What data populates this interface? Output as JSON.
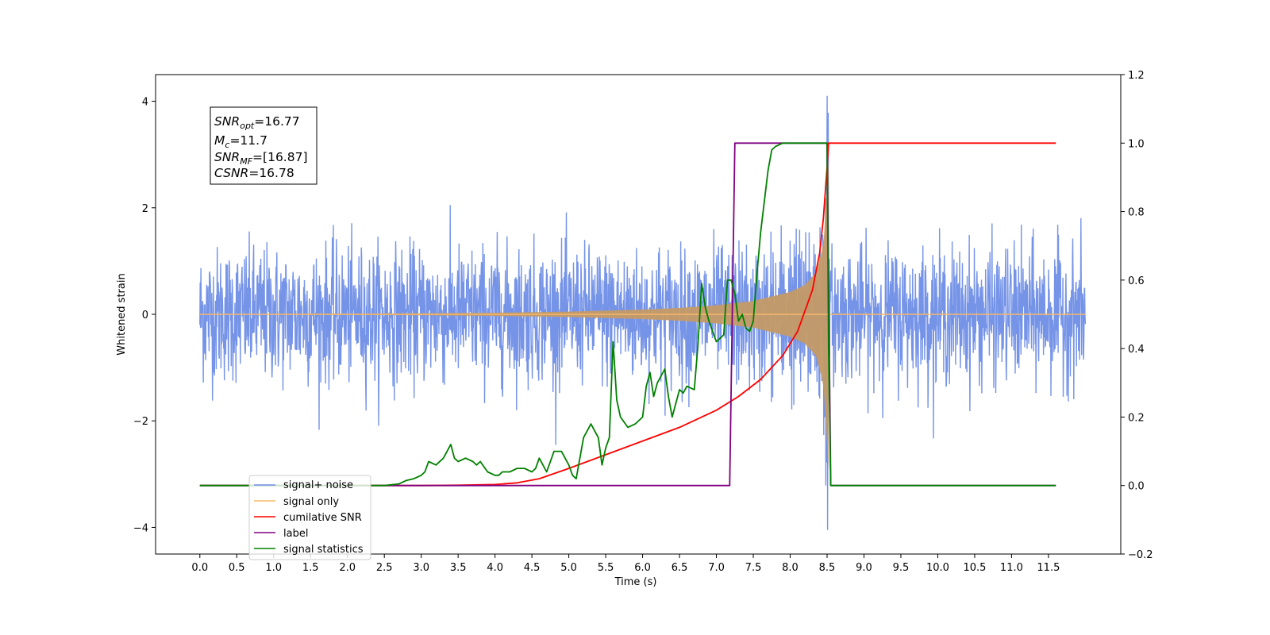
{
  "chart_data": {
    "type": "line",
    "xlabel": "Time (s)",
    "ylabel_left": "Whitened strain",
    "ylabel_right": "",
    "xlim": [
      -0.6,
      12.48
    ],
    "ylim_left": [
      -4.5,
      4.5
    ],
    "ylim_right": [
      -0.2,
      1.2
    ],
    "x_ticks": [
      "0.0",
      "0.5",
      "1.0",
      "1.5",
      "2.0",
      "2.5",
      "3.0",
      "3.5",
      "4.0",
      "4.5",
      "5.0",
      "5.5",
      "6.0",
      "6.5",
      "7.0",
      "7.5",
      "8.0",
      "8.5",
      "9.0",
      "9.5",
      "10.0",
      "10.5",
      "11.0",
      "11.5"
    ],
    "x_tick_values": [
      0,
      0.5,
      1,
      1.5,
      2,
      2.5,
      3,
      3.5,
      4,
      4.5,
      5,
      5.5,
      6,
      6.5,
      7,
      7.5,
      8,
      8.5,
      9,
      9.5,
      10,
      10.5,
      11,
      11.5
    ],
    "y_ticks_left": [
      "−4",
      "−2",
      "0",
      "2",
      "4"
    ],
    "y_tick_values_left": [
      -4,
      -2,
      0,
      2,
      4
    ],
    "y_ticks_right": [
      "−0.2",
      "0.0",
      "0.2",
      "0.4",
      "0.6",
      "0.8",
      "1.0",
      "1.2"
    ],
    "y_tick_values_right": [
      -0.2,
      0,
      0.2,
      0.4,
      0.6,
      0.8,
      1.0,
      1.2
    ],
    "grid": false,
    "legend_placement": "lower-left",
    "annotation": {
      "lines": [
        {
          "base": "SNR",
          "sub": "opt",
          "rest": "=16.77"
        },
        {
          "base": "M",
          "sub": "c",
          "rest": "=11.7"
        },
        {
          "base": "SNR",
          "sub": "MF",
          "rest": "=[16.87]"
        },
        {
          "base": "CSNR",
          "sub": "",
          "rest": "=16.78"
        }
      ]
    },
    "series": [
      {
        "name": "signal+ noise",
        "axis": "left",
        "color": "#6f8ee6",
        "noise_level": 1.0,
        "t_range": [
          0,
          12.0
        ],
        "peak_value": 4.1,
        "min_value": -4.05
      },
      {
        "name": "signal only",
        "axis": "left",
        "color": "#f5b869",
        "envelope_x": [
          0,
          1,
          2,
          3,
          4,
          5,
          5.5,
          6,
          6.5,
          7,
          7.5,
          8,
          8.2,
          8.35,
          8.45,
          8.5,
          8.52
        ],
        "envelope_y": [
          0.005,
          0.008,
          0.012,
          0.018,
          0.03,
          0.05,
          0.07,
          0.09,
          0.12,
          0.17,
          0.25,
          0.42,
          0.55,
          0.78,
          1.3,
          2.4,
          2.9
        ]
      },
      {
        "name": "cumilative SNR",
        "axis": "right",
        "color": "#ff0000",
        "x": [
          0,
          2,
          3,
          3.5,
          4,
          4.3,
          4.6,
          5,
          5.5,
          6,
          6.5,
          7,
          7.3,
          7.6,
          7.9,
          8.1,
          8.3,
          8.4,
          8.45,
          8.5,
          8.52,
          9,
          10,
          11,
          11.6
        ],
        "y": [
          0,
          0,
          0,
          0.001,
          0.003,
          0.008,
          0.02,
          0.05,
          0.09,
          0.13,
          0.17,
          0.22,
          0.26,
          0.31,
          0.38,
          0.45,
          0.57,
          0.68,
          0.78,
          0.93,
          1.0,
          1.0,
          1.0,
          1.0,
          1.0
        ]
      },
      {
        "name": "label",
        "axis": "right",
        "color": "#800080",
        "x": [
          0,
          7.18,
          7.25,
          8.5,
          8.55,
          11.6
        ],
        "y": [
          0,
          0,
          1,
          1,
          0,
          0
        ]
      },
      {
        "name": "signal statistics",
        "axis": "right",
        "color": "#008000",
        "x": [
          0,
          2.2,
          2.5,
          2.7,
          2.8,
          2.9,
          3.0,
          3.05,
          3.1,
          3.2,
          3.3,
          3.4,
          3.45,
          3.5,
          3.6,
          3.7,
          3.75,
          3.8,
          3.9,
          4.0,
          4.05,
          4.1,
          4.2,
          4.3,
          4.4,
          4.5,
          4.55,
          4.6,
          4.7,
          4.8,
          4.9,
          5.0,
          5.05,
          5.1,
          5.2,
          5.3,
          5.35,
          5.4,
          5.45,
          5.5,
          5.55,
          5.6,
          5.65,
          5.7,
          5.8,
          5.9,
          6.0,
          6.05,
          6.1,
          6.15,
          6.2,
          6.3,
          6.35,
          6.4,
          6.5,
          6.55,
          6.6,
          6.7,
          6.75,
          6.8,
          6.85,
          6.9,
          7.0,
          7.05,
          7.1,
          7.15,
          7.2,
          7.25,
          7.3,
          7.35,
          7.4,
          7.45,
          7.5,
          7.55,
          7.6,
          7.7,
          7.75,
          7.8,
          7.9,
          8.0,
          8.2,
          8.4,
          8.5,
          8.52,
          8.55,
          9,
          10,
          11,
          11.6
        ],
        "y": [
          0,
          0,
          0,
          0.005,
          0.015,
          0.02,
          0.03,
          0.04,
          0.07,
          0.06,
          0.08,
          0.12,
          0.08,
          0.07,
          0.08,
          0.07,
          0.06,
          0.07,
          0.04,
          0.03,
          0.03,
          0.04,
          0.04,
          0.05,
          0.05,
          0.04,
          0.05,
          0.08,
          0.04,
          0.1,
          0.1,
          0.06,
          0.03,
          0.02,
          0.14,
          0.18,
          0.16,
          0.14,
          0.06,
          0.11,
          0.14,
          0.42,
          0.25,
          0.2,
          0.17,
          0.18,
          0.2,
          0.29,
          0.33,
          0.26,
          0.3,
          0.34,
          0.26,
          0.2,
          0.28,
          0.27,
          0.29,
          0.28,
          0.41,
          0.59,
          0.52,
          0.48,
          0.42,
          0.43,
          0.44,
          0.6,
          0.6,
          0.56,
          0.48,
          0.5,
          0.46,
          0.45,
          0.48,
          0.62,
          0.74,
          0.92,
          0.98,
          0.99,
          1.0,
          1.0,
          1.0,
          1.0,
          1.0,
          0.4,
          0.0,
          0.0,
          0.0,
          0.0,
          0.0
        ]
      }
    ]
  }
}
